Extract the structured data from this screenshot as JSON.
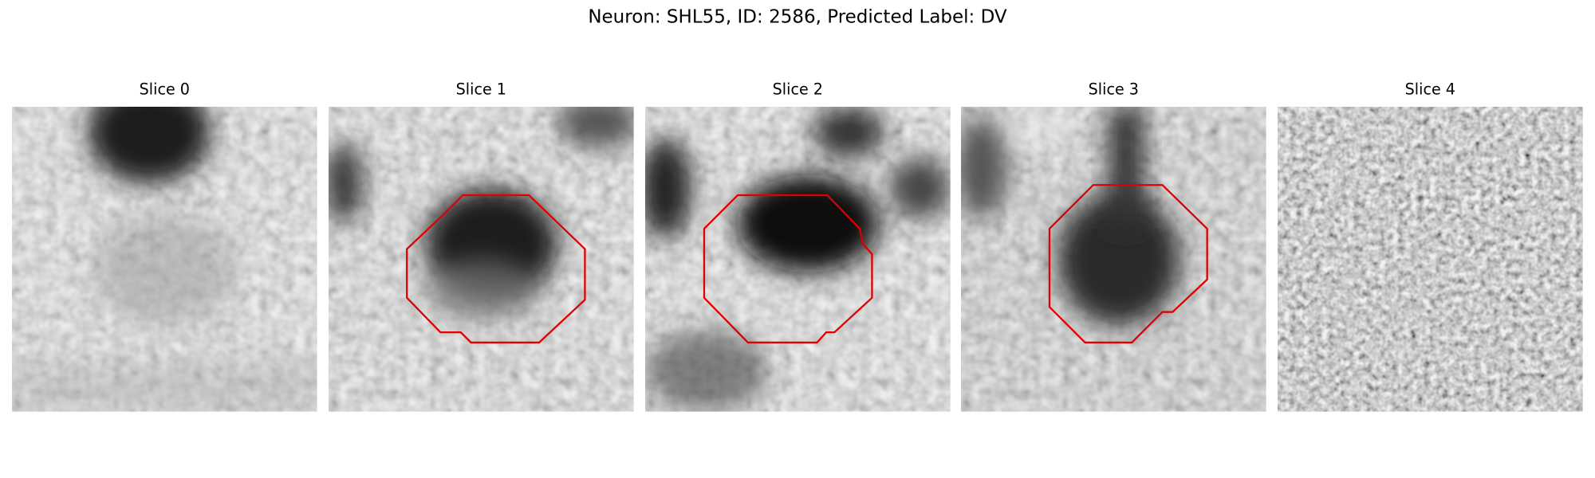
{
  "figure": {
    "title": "Neuron: SHL55, ID: 2586, Predicted Label: DV",
    "panels": [
      {
        "title": "Slice 0"
      },
      {
        "title": "Slice 1"
      },
      {
        "title": "Slice 2"
      },
      {
        "title": "Slice 3"
      },
      {
        "title": "Slice 4"
      }
    ]
  }
}
